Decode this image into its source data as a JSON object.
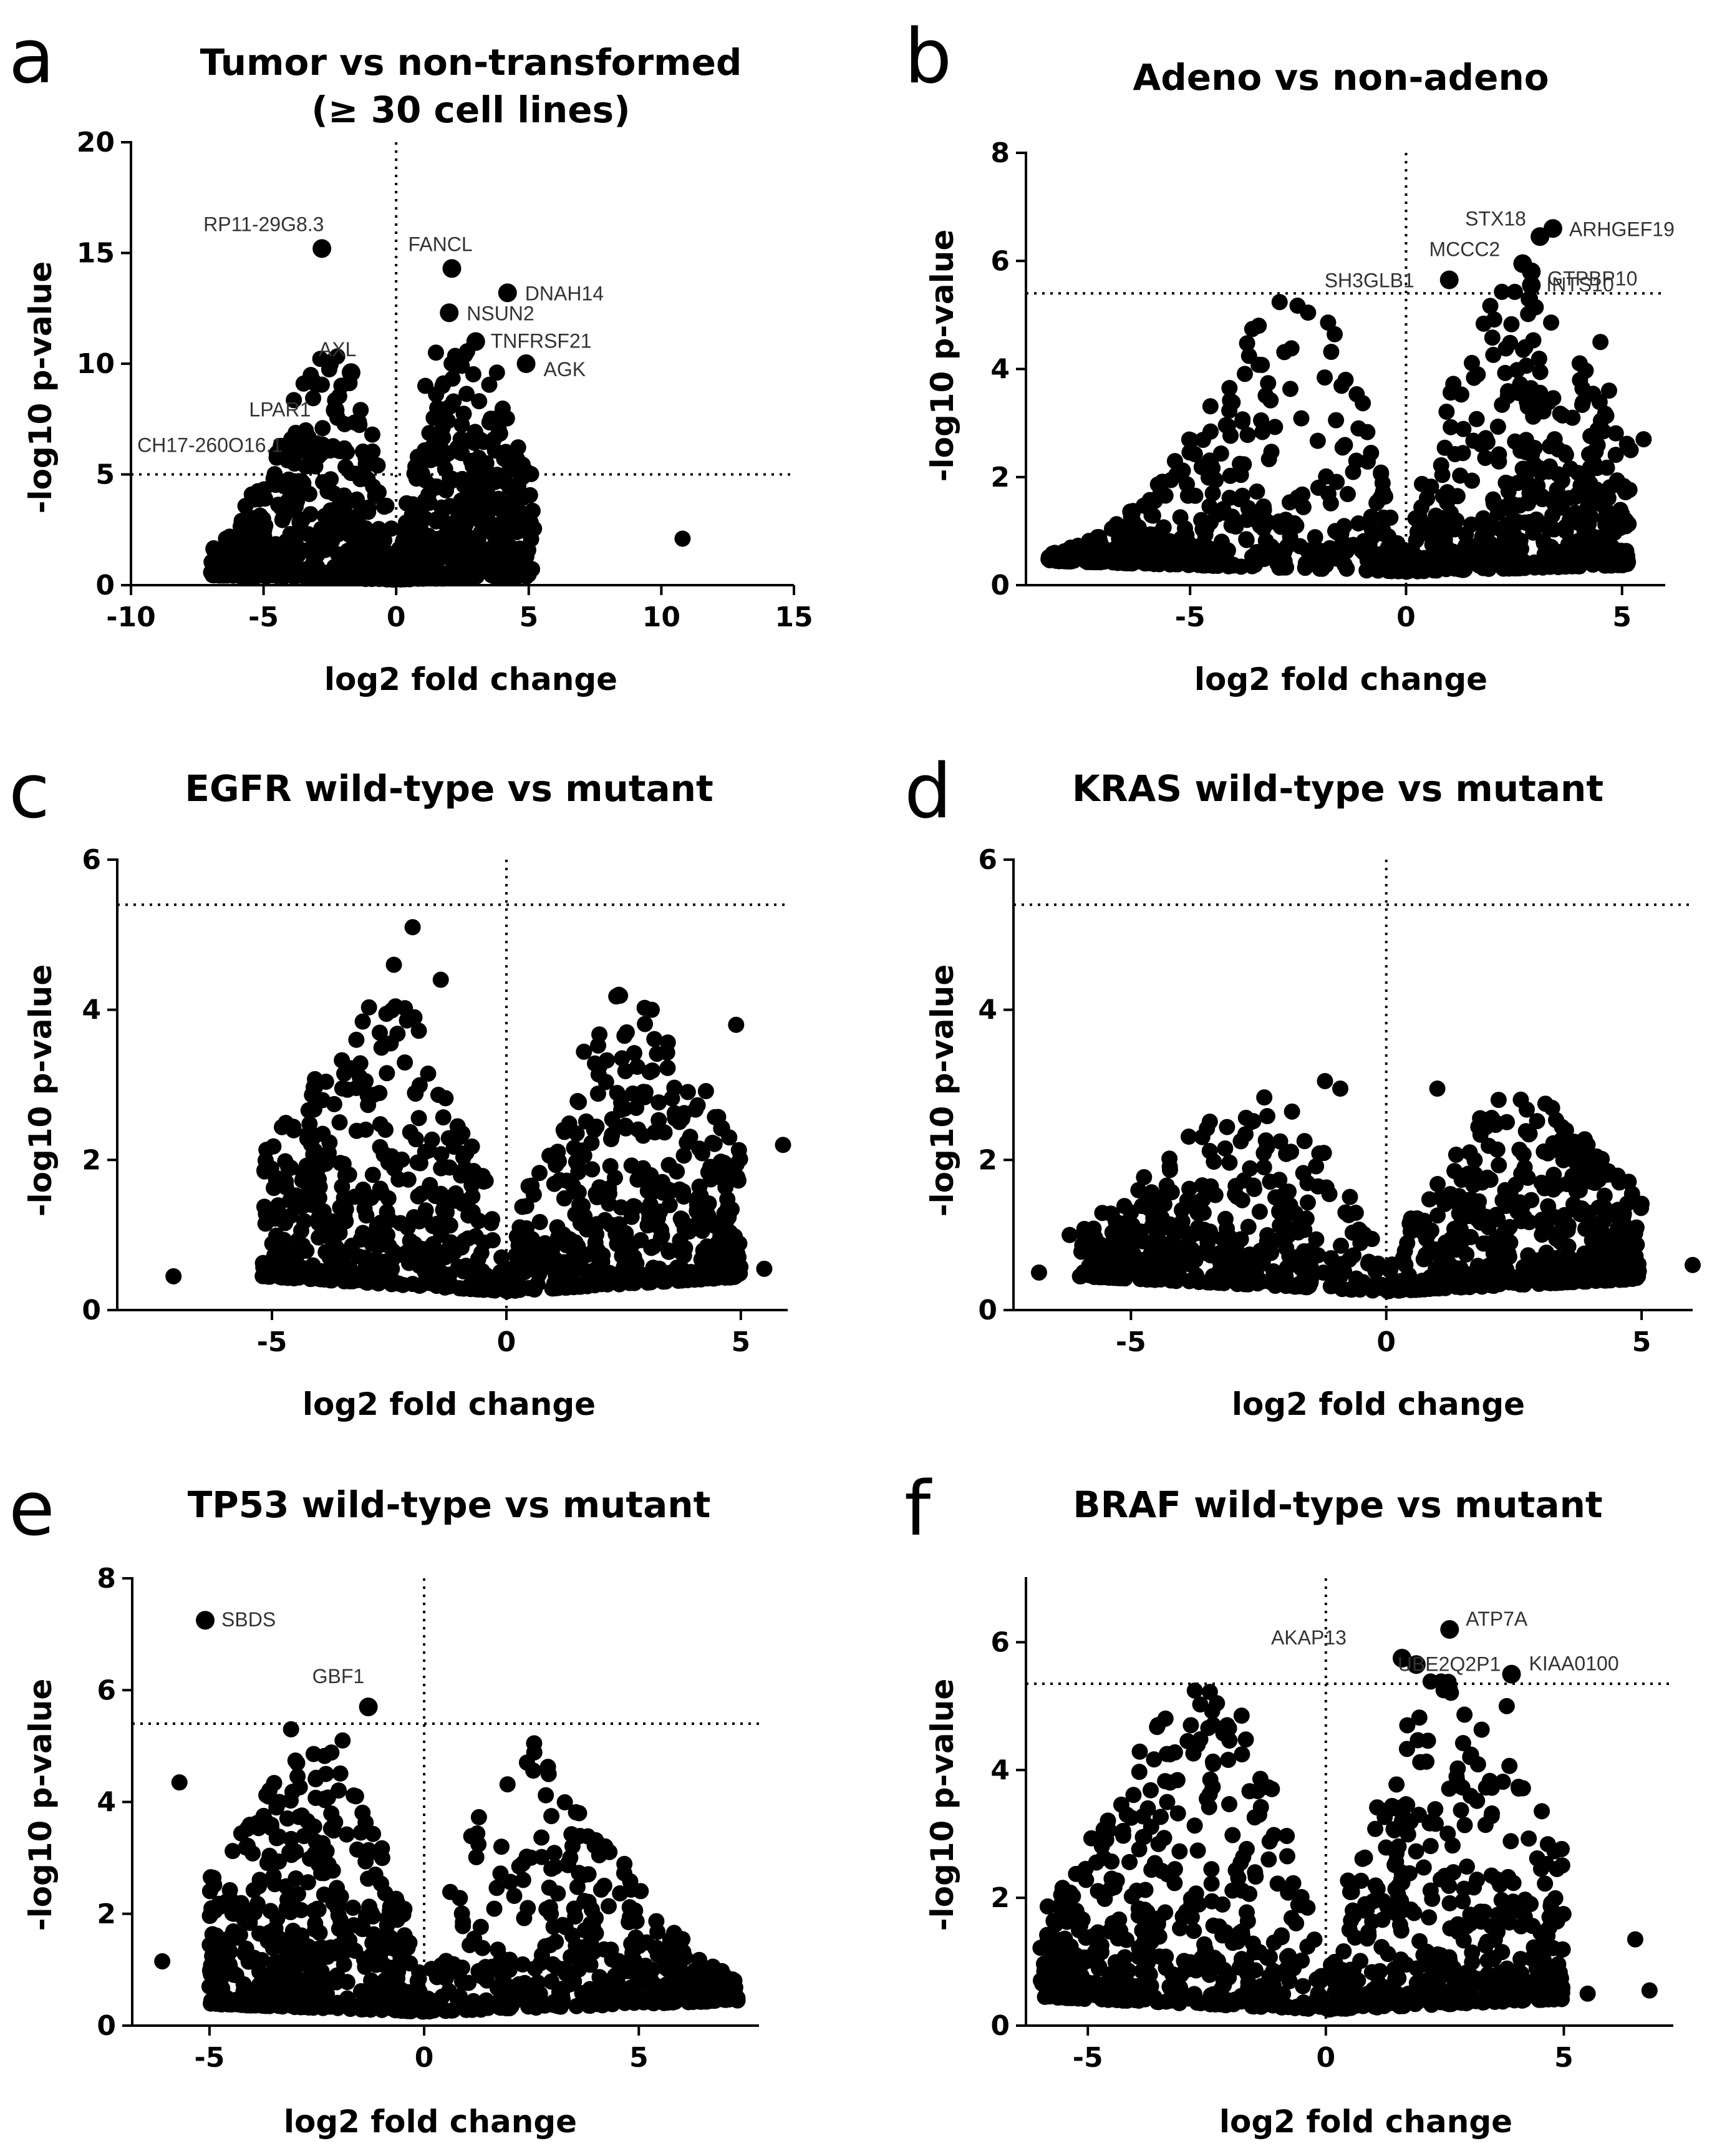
{
  "chart_data": [
    {
      "panel": "a",
      "type": "scatter",
      "title": "Tumor vs non-transformed\n(≥ 30 cell lines)",
      "xlabel": "log2 fold change",
      "ylabel": "-log10 p-value",
      "xlim": [
        -10,
        15
      ],
      "ylim": [
        0,
        20
      ],
      "xticks": [
        -10,
        -5,
        0,
        5,
        10,
        15
      ],
      "yticks": [
        0,
        5,
        10,
        15,
        20
      ],
      "threshold_y": 5,
      "labeled_points": [
        {
          "name": "RP11-29G8.3",
          "x": -2.8,
          "y": 15.2
        },
        {
          "name": "FANCL",
          "x": 2.1,
          "y": 14.3
        },
        {
          "name": "DNAH14",
          "x": 4.2,
          "y": 13.2
        },
        {
          "name": "NSUN2",
          "x": 2.0,
          "y": 12.3
        },
        {
          "name": "TNFRSF21",
          "x": 3.0,
          "y": 11.0
        },
        {
          "name": "AXL",
          "x": -1.7,
          "y": 9.6
        },
        {
          "name": "AGK",
          "x": 4.9,
          "y": 10.0
        },
        {
          "name": "LPAR1",
          "x": -2.3,
          "y": 7.9
        },
        {
          "name": "CH17-260O16.1",
          "x": -2.8,
          "y": 6.3
        }
      ],
      "cloud_points": [
        {
          "x": 10.8,
          "y": 2.1
        },
        {
          "x": -0.9,
          "y": 6.8
        },
        {
          "x": 1.5,
          "y": 10.5
        },
        {
          "x": 2.6,
          "y": 10.4
        },
        {
          "x": 3.8,
          "y": 9.6
        },
        {
          "x": 1.1,
          "y": 9.0
        },
        {
          "x": -6.6,
          "y": 0.7
        },
        {
          "x": -5.5,
          "y": 0.6
        },
        {
          "x": -4.0,
          "y": 0.8
        },
        {
          "x": -2.2,
          "y": 2.6
        },
        {
          "x": -1.5,
          "y": 3.0
        },
        {
          "x": 2.4,
          "y": 6.0
        },
        {
          "x": 3.4,
          "y": 5.5
        },
        {
          "x": 4.5,
          "y": 3.5
        }
      ],
      "cloud": {
        "x_range": [
          -7,
          5.2
        ],
        "y_max": 10.5
      }
    },
    {
      "panel": "b",
      "type": "scatter",
      "title": "Adeno vs non-adeno",
      "xlabel": "log2 fold change",
      "ylabel": "-log10 p-value",
      "xlim": [
        -8.8,
        6
      ],
      "ylim": [
        0,
        8
      ],
      "xticks": [
        -5,
        0,
        5
      ],
      "yticks": [
        0,
        2,
        4,
        6,
        8
      ],
      "threshold_y": 5.4,
      "labeled_points": [
        {
          "name": "STX18",
          "x": 3.1,
          "y": 6.45
        },
        {
          "name": "ARHGEF19",
          "x": 3.4,
          "y": 6.6
        },
        {
          "name": "MCCC2",
          "x": 2.7,
          "y": 5.95
        },
        {
          "name": "GTPBP10",
          "x": 2.9,
          "y": 5.8
        },
        {
          "name": "SH3GLB1",
          "x": 1.0,
          "y": 5.65
        },
        {
          "name": "INTS10",
          "x": 2.9,
          "y": 5.55
        }
      ],
      "cloud_points": [
        {
          "x": 5.5,
          "y": 2.7
        },
        {
          "x": 5.2,
          "y": 2.5
        },
        {
          "x": 4.7,
          "y": 3.6
        },
        {
          "x": 4.5,
          "y": 4.5
        },
        {
          "x": -1.4,
          "y": 3.8
        },
        {
          "x": -1.1,
          "y": 2.9
        },
        {
          "x": -8.1,
          "y": 0.5
        },
        {
          "x": -7.2,
          "y": 0.45
        },
        {
          "x": 5.1,
          "y": 0.5
        },
        {
          "x": 3.7,
          "y": 1.0
        }
      ],
      "cloud": {
        "x_range": [
          -8.3,
          5.2
        ],
        "y_max": 5.3
      }
    },
    {
      "panel": "c",
      "type": "scatter",
      "title": "EGFR wild-type vs mutant",
      "xlabel": "log2 fold change",
      "ylabel": "-log10 p-value",
      "xlim": [
        -8.3,
        6
      ],
      "ylim": [
        0,
        6
      ],
      "xticks": [
        -5,
        0,
        5
      ],
      "yticks": [
        0,
        2,
        4,
        6
      ],
      "threshold_y": 5.4,
      "labeled_points": [],
      "cloud_points": [
        {
          "x": -2.0,
          "y": 5.1
        },
        {
          "x": -2.4,
          "y": 4.6
        },
        {
          "x": -1.4,
          "y": 4.4
        },
        {
          "x": -3.2,
          "y": 3.6
        },
        {
          "x": 2.4,
          "y": 4.2
        },
        {
          "x": 3.1,
          "y": 4.0
        },
        {
          "x": 4.9,
          "y": 3.8
        },
        {
          "x": 5.9,
          "y": 2.2
        },
        {
          "x": 5.5,
          "y": 0.55
        },
        {
          "x": -7.1,
          "y": 0.45
        },
        {
          "x": -4.0,
          "y": 1.9
        },
        {
          "x": 4.1,
          "y": 1.5
        }
      ],
      "cloud": {
        "x_range": [
          -5.2,
          5.0
        ],
        "y_max": 3.9
      }
    },
    {
      "panel": "d",
      "type": "scatter",
      "title": "KRAS wild-type vs mutant",
      "xlabel": "log2 fold change",
      "ylabel": "-log10 p-value",
      "xlim": [
        -7.3,
        6
      ],
      "ylim": [
        0,
        6
      ],
      "xticks": [
        -5,
        0,
        5
      ],
      "yticks": [
        0,
        2,
        4,
        6
      ],
      "threshold_y": 5.4,
      "labeled_points": [],
      "cloud_points": [
        {
          "x": -1.2,
          "y": 3.05
        },
        {
          "x": -0.9,
          "y": 2.95
        },
        {
          "x": 1.0,
          "y": 2.95
        },
        {
          "x": 2.2,
          "y": 2.8
        },
        {
          "x": 6.0,
          "y": 0.6
        },
        {
          "x": -6.8,
          "y": 0.5
        },
        {
          "x": -6.2,
          "y": 1.0
        },
        {
          "x": -5.0,
          "y": 1.3
        },
        {
          "x": 4.9,
          "y": 1.1
        }
      ],
      "cloud": {
        "x_range": [
          -6.0,
          5.0
        ],
        "y_max": 2.6
      }
    },
    {
      "panel": "e",
      "type": "scatter",
      "title": "TP53 wild-type vs mutant",
      "xlabel": "log2 fold change",
      "ylabel": "-log10 p-value",
      "xlim": [
        -6.8,
        7.8
      ],
      "ylim": [
        0,
        8
      ],
      "xticks": [
        -5,
        0,
        5
      ],
      "yticks": [
        0,
        2,
        4,
        6,
        8
      ],
      "threshold_y": 5.4,
      "labeled_points": [
        {
          "name": "SBDS",
          "x": -5.1,
          "y": 7.25
        },
        {
          "name": "GBF1",
          "x": -1.3,
          "y": 5.7
        }
      ],
      "cloud_points": [
        {
          "x": -3.1,
          "y": 5.3
        },
        {
          "x": -1.9,
          "y": 5.1
        },
        {
          "x": -5.7,
          "y": 4.35
        },
        {
          "x": 2.9,
          "y": 4.5
        },
        {
          "x": -6.1,
          "y": 1.15
        },
        {
          "x": -5.0,
          "y": 0.7
        },
        {
          "x": 7.3,
          "y": 0.45
        },
        {
          "x": 1.8,
          "y": 3.2
        },
        {
          "x": 2.3,
          "y": 2.9
        }
      ],
      "cloud": {
        "x_range": [
          -5.0,
          7.3
        ],
        "y_max": 4.8
      }
    },
    {
      "panel": "f",
      "type": "scatter",
      "title": "BRAF wild-type vs mutant",
      "xlabel": "log2 fold change",
      "ylabel": "-log10 p-value",
      "xlim": [
        -6.3,
        7.3
      ],
      "ylim": [
        0,
        7
      ],
      "xticks": [
        -5,
        0,
        5
      ],
      "yticks": [
        0,
        2,
        4,
        6
      ],
      "threshold_y": 5.35,
      "labeled_points": [
        {
          "name": "AKAP13",
          "x": 1.6,
          "y": 5.75
        },
        {
          "name": "ATP7A",
          "x": 2.6,
          "y": 6.2
        },
        {
          "name": "UBE2Q2P1",
          "x": 1.9,
          "y": 5.65
        },
        {
          "name": "KIAA0100",
          "x": 3.9,
          "y": 5.5
        }
      ],
      "cloud_points": [
        {
          "x": -2.5,
          "y": 3.55
        },
        {
          "x": -1.4,
          "y": 3.3
        },
        {
          "x": -1.2,
          "y": 2.6
        },
        {
          "x": 6.5,
          "y": 1.35
        },
        {
          "x": 6.8,
          "y": 0.55
        },
        {
          "x": 5.5,
          "y": 0.5
        },
        {
          "x": 4.9,
          "y": 0.6
        },
        {
          "x": 4.7,
          "y": 1.7
        },
        {
          "x": 3.8,
          "y": 5.0
        },
        {
          "x": -5.9,
          "y": 0.45
        }
      ],
      "cloud": {
        "x_range": [
          -6.0,
          5.0
        ],
        "y_max": 5.2
      }
    }
  ]
}
